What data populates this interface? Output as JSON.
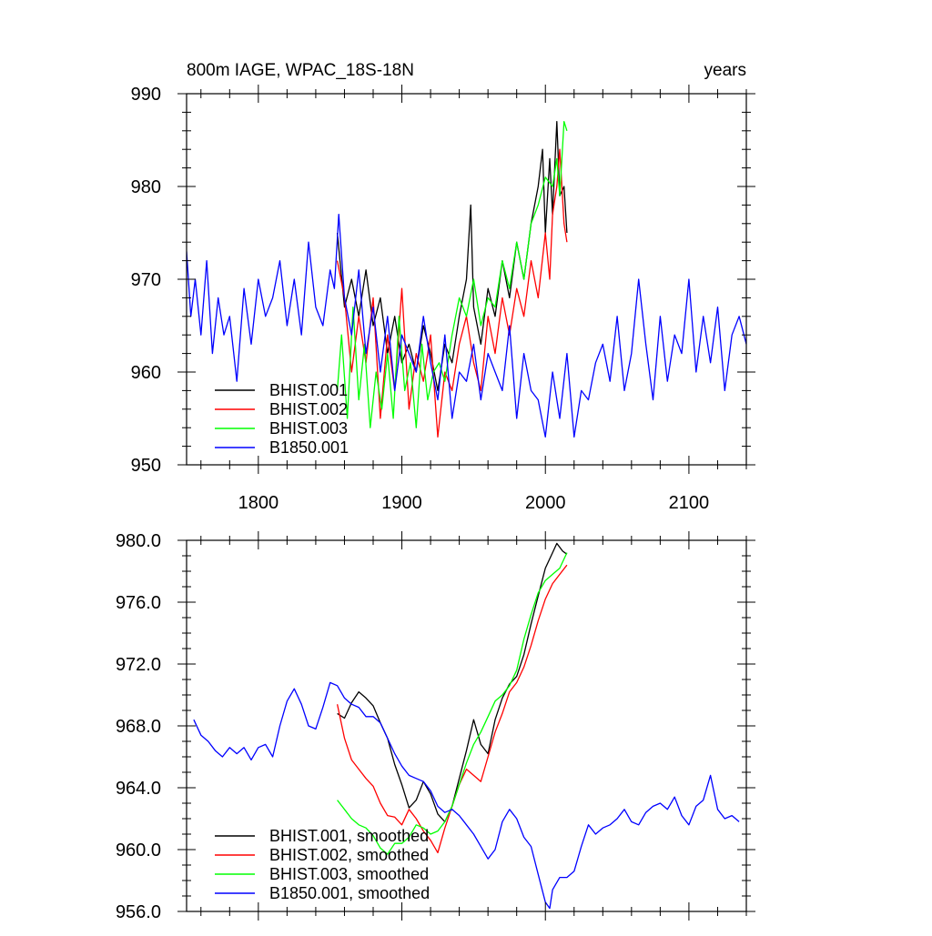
{
  "chart_data": [
    {
      "type": "line",
      "title": "800m IAGE, WPAC_18S-18N",
      "units": "years",
      "xlim": [
        1750,
        2140
      ],
      "ylim": [
        950,
        990
      ],
      "xticks": [
        1800,
        1900,
        2000,
        2100
      ],
      "xtick_labels": [
        "1800",
        "1900",
        "2000",
        "2100"
      ],
      "yticks": [
        950,
        960,
        970,
        980,
        990
      ],
      "ytick_labels": [
        "950",
        "960",
        "970",
        "980",
        "990"
      ],
      "legend_position": "bottom-left",
      "grid": false,
      "series": [
        {
          "name": "BHIST.001",
          "color": "#000000",
          "x": [
            1855,
            1860,
            1865,
            1870,
            1875,
            1880,
            1885,
            1890,
            1895,
            1900,
            1905,
            1910,
            1915,
            1920,
            1925,
            1930,
            1935,
            1940,
            1945,
            1948,
            1950,
            1955,
            1960,
            1965,
            1970,
            1975,
            1980,
            1985,
            1990,
            1995,
            1998,
            2000,
            2003,
            2005,
            2008,
            2010,
            2013,
            2015
          ],
          "y": [
            975,
            967,
            970,
            966,
            971,
            965,
            968,
            962,
            966,
            961,
            963,
            960,
            965,
            962,
            958,
            963,
            961,
            966,
            970,
            978,
            967,
            963,
            969,
            966,
            972,
            968,
            974,
            970,
            976,
            980,
            984,
            975,
            983,
            977,
            987,
            979,
            980,
            975
          ]
        },
        {
          "name": "BHIST.002",
          "color": "#ff0000",
          "x": [
            1855,
            1860,
            1865,
            1870,
            1875,
            1880,
            1885,
            1890,
            1895,
            1900,
            1905,
            1910,
            1915,
            1920,
            1925,
            1930,
            1935,
            1940,
            1945,
            1950,
            1955,
            1960,
            1965,
            1970,
            1975,
            1980,
            1985,
            1990,
            1995,
            2000,
            2003,
            2005,
            2008,
            2010,
            2013,
            2015
          ],
          "y": [
            972,
            968,
            960,
            966,
            961,
            968,
            955,
            964,
            958,
            969,
            956,
            962,
            959,
            964,
            953,
            960,
            958,
            963,
            966,
            961,
            958,
            966,
            962,
            968,
            964,
            969,
            966,
            972,
            968,
            975,
            970,
            977,
            980,
            984,
            976,
            974
          ]
        },
        {
          "name": "BHIST.003",
          "color": "#00ff00",
          "x": [
            1855,
            1858,
            1862,
            1866,
            1870,
            1874,
            1878,
            1882,
            1886,
            1890,
            1894,
            1898,
            1902,
            1906,
            1910,
            1914,
            1918,
            1922,
            1926,
            1930,
            1935,
            1940,
            1945,
            1950,
            1955,
            1960,
            1965,
            1970,
            1975,
            1980,
            1985,
            1990,
            1995,
            2000,
            2005,
            2008,
            2010,
            2013,
            2015
          ],
          "y": [
            958,
            964,
            955,
            967,
            957,
            963,
            954,
            960,
            956,
            962,
            955,
            966,
            958,
            961,
            954,
            963,
            957,
            960,
            961,
            959,
            964,
            968,
            966,
            970,
            965,
            968,
            967,
            972,
            969,
            974,
            970,
            976,
            978,
            981,
            980,
            983,
            979,
            987,
            986
          ]
        },
        {
          "name": "B1850.001",
          "color": "#0000ff",
          "x": [
            1750,
            1753,
            1756,
            1760,
            1764,
            1768,
            1772,
            1776,
            1780,
            1785,
            1790,
            1795,
            1800,
            1805,
            1810,
            1815,
            1820,
            1825,
            1830,
            1835,
            1840,
            1845,
            1850,
            1853,
            1856,
            1860,
            1865,
            1870,
            1875,
            1880,
            1885,
            1890,
            1895,
            1900,
            1905,
            1910,
            1915,
            1920,
            1925,
            1930,
            1935,
            1940,
            1945,
            1950,
            1955,
            1960,
            1965,
            1970,
            1975,
            1980,
            1985,
            1990,
            1995,
            2000,
            2005,
            2010,
            2015,
            2020,
            2025,
            2030,
            2035,
            2040,
            2045,
            2050,
            2055,
            2060,
            2065,
            2070,
            2075,
            2080,
            2085,
            2090,
            2095,
            2100,
            2105,
            2110,
            2115,
            2120,
            2125,
            2130,
            2135,
            2140
          ],
          "y": [
            973,
            966,
            970,
            964,
            972,
            962,
            968,
            964,
            966,
            959,
            969,
            963,
            970,
            966,
            968,
            972,
            965,
            970,
            964,
            974,
            967,
            965,
            971,
            969,
            977,
            968,
            964,
            971,
            962,
            967,
            960,
            966,
            958,
            964,
            962,
            960,
            966,
            961,
            957,
            964,
            955,
            960,
            959,
            963,
            957,
            962,
            960,
            958,
            965,
            955,
            962,
            958,
            957,
            953,
            960,
            955,
            962,
            953,
            958,
            957,
            961,
            963,
            959,
            966,
            958,
            962,
            970,
            963,
            957,
            966,
            959,
            964,
            962,
            970,
            960,
            966,
            961,
            967,
            958,
            964,
            966,
            963
          ]
        }
      ]
    },
    {
      "type": "line",
      "xlim": [
        1750,
        2140
      ],
      "ylim": [
        956,
        980
      ],
      "xticks": [
        1800,
        1900,
        2000,
        2100
      ],
      "yticks": [
        956,
        960,
        964,
        968,
        972,
        976,
        980
      ],
      "ytick_labels": [
        "956.0",
        "960.0",
        "964.0",
        "968.0",
        "972.0",
        "976.0",
        "980.0"
      ],
      "legend_position": "bottom-left",
      "grid": false,
      "series": [
        {
          "name": "BHIST.001, smoothed",
          "color": "#000000",
          "x": [
            1855,
            1860,
            1865,
            1870,
            1875,
            1880,
            1885,
            1890,
            1895,
            1900,
            1905,
            1910,
            1915,
            1920,
            1925,
            1930,
            1935,
            1940,
            1945,
            1950,
            1955,
            1960,
            1965,
            1970,
            1975,
            1980,
            1985,
            1990,
            1995,
            2000,
            2005,
            2008,
            2012,
            2015
          ],
          "y": [
            968.8,
            968.5,
            969.5,
            970.2,
            969.8,
            969.3,
            968.2,
            967.2,
            965.5,
            964.2,
            962.7,
            963.2,
            964.4,
            963.6,
            962.3,
            961.8,
            962.8,
            964.6,
            966.4,
            968.4,
            966.8,
            966.2,
            968.4,
            969.8,
            970.7,
            971.2,
            972.6,
            974.6,
            976.4,
            978.2,
            979.2,
            979.8,
            979.3,
            979.1
          ]
        },
        {
          "name": "BHIST.002, smoothed",
          "color": "#ff0000",
          "x": [
            1855,
            1860,
            1865,
            1870,
            1875,
            1880,
            1885,
            1890,
            1895,
            1900,
            1905,
            1910,
            1915,
            1920,
            1925,
            1930,
            1935,
            1940,
            1945,
            1950,
            1955,
            1960,
            1965,
            1970,
            1975,
            1980,
            1985,
            1990,
            1995,
            2000,
            2005,
            2010,
            2015
          ],
          "y": [
            969.4,
            967.2,
            965.8,
            965.2,
            964.6,
            964.1,
            963.0,
            962.2,
            962.1,
            961.6,
            962.6,
            962.0,
            961.2,
            960.6,
            959.8,
            961.4,
            962.8,
            964.2,
            965.2,
            964.8,
            964.4,
            966.0,
            967.6,
            968.8,
            970.2,
            970.8,
            971.8,
            973.2,
            974.8,
            976.2,
            977.2,
            977.8,
            978.4
          ]
        },
        {
          "name": "BHIST.003, smoothed",
          "color": "#00ff00",
          "x": [
            1855,
            1860,
            1865,
            1870,
            1875,
            1880,
            1885,
            1890,
            1895,
            1900,
            1905,
            1910,
            1915,
            1920,
            1925,
            1930,
            1935,
            1940,
            1945,
            1950,
            1955,
            1960,
            1965,
            1970,
            1975,
            1980,
            1985,
            1990,
            1995,
            2000,
            2005,
            2010,
            2015
          ],
          "y": [
            963.2,
            962.6,
            962.0,
            961.6,
            961.4,
            960.9,
            960.1,
            959.7,
            960.4,
            960.4,
            960.8,
            961.6,
            961.4,
            961.0,
            961.2,
            961.8,
            962.8,
            964.2,
            965.6,
            966.8,
            967.6,
            968.6,
            969.6,
            970.0,
            970.6,
            971.6,
            973.6,
            975.2,
            976.6,
            977.4,
            977.8,
            978.2,
            979.2
          ]
        },
        {
          "name": "B1850.001, smoothed",
          "color": "#0000ff",
          "x": [
            1755,
            1760,
            1765,
            1770,
            1775,
            1780,
            1785,
            1790,
            1795,
            1800,
            1805,
            1810,
            1815,
            1820,
            1825,
            1830,
            1835,
            1840,
            1845,
            1850,
            1855,
            1860,
            1865,
            1870,
            1875,
            1880,
            1885,
            1890,
            1895,
            1900,
            1905,
            1910,
            1915,
            1920,
            1925,
            1930,
            1935,
            1940,
            1945,
            1950,
            1955,
            1960,
            1965,
            1970,
            1975,
            1980,
            1985,
            1990,
            1995,
            2000,
            2003,
            2005,
            2010,
            2015,
            2020,
            2025,
            2030,
            2035,
            2040,
            2045,
            2050,
            2055,
            2060,
            2065,
            2070,
            2075,
            2080,
            2085,
            2090,
            2095,
            2100,
            2105,
            2110,
            2115,
            2120,
            2125,
            2130,
            2135
          ],
          "y": [
            968.4,
            967.4,
            967.0,
            966.4,
            966.0,
            966.6,
            966.2,
            966.6,
            965.8,
            966.6,
            966.8,
            966.0,
            968.0,
            969.6,
            970.4,
            969.4,
            968.0,
            967.8,
            969.2,
            970.8,
            970.6,
            969.8,
            969.4,
            969.2,
            968.6,
            968.6,
            968.2,
            967.2,
            966.2,
            965.4,
            964.8,
            964.6,
            964.4,
            963.8,
            962.8,
            962.4,
            962.6,
            962.2,
            961.6,
            961.0,
            960.2,
            959.4,
            960.0,
            961.8,
            962.6,
            962.0,
            960.8,
            960.2,
            958.4,
            956.6,
            956.2,
            957.4,
            958.2,
            958.2,
            958.6,
            960.2,
            961.6,
            961.0,
            961.4,
            961.6,
            962.0,
            962.6,
            961.8,
            961.6,
            962.4,
            962.8,
            963.0,
            962.6,
            963.4,
            962.2,
            961.6,
            962.8,
            963.2,
            964.8,
            962.6,
            962.0,
            962.2,
            961.8
          ]
        }
      ]
    }
  ]
}
